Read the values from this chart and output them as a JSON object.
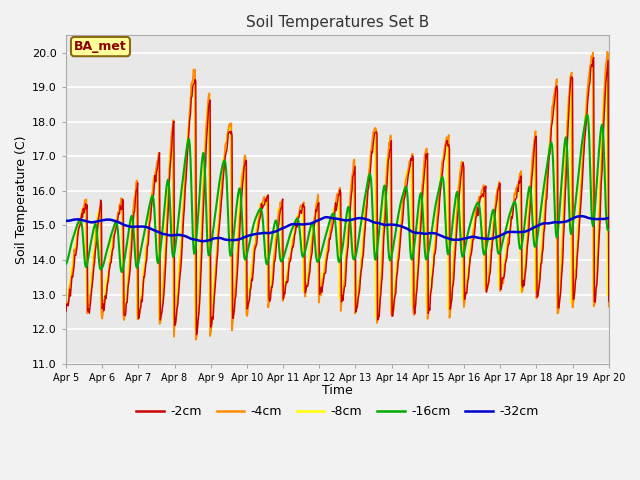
{
  "title": "Soil Temperatures Set B",
  "xlabel": "Time",
  "ylabel": "Soil Temperature (C)",
  "ylim": [
    11.0,
    20.5
  ],
  "yticks": [
    11.0,
    12.0,
    13.0,
    14.0,
    15.0,
    16.0,
    17.0,
    18.0,
    19.0,
    20.0
  ],
  "xtick_labels": [
    "Apr 5",
    "Apr 6",
    "Apr 7",
    "Apr 8",
    "Apr 9",
    "Apr 10",
    "Apr 11",
    "Apr 12",
    "Apr 13",
    "Apr 14",
    "Apr 15",
    "Apr 16",
    "Apr 17",
    "Apr 18",
    "Apr 19",
    "Apr 20"
  ],
  "annotation_text": "BA_met",
  "annotation_color": "#8B0000",
  "annotation_bg": "#FFFF99",
  "annotation_border": "#8B6914",
  "fig_facecolor": "#F2F2F2",
  "ax_facecolor": "#E8E8E8",
  "grid_color": "#FFFFFF",
  "colors": {
    "2cm": "#CC0000",
    "4cm": "#FF8C00",
    "8cm": "#FFFF00",
    "16cm": "#00AA00",
    "32cm": "#0000CC"
  },
  "line_widths": {
    "2cm": 1.0,
    "4cm": 1.3,
    "8cm": 1.0,
    "16cm": 1.5,
    "32cm": 1.8
  },
  "legend_labels": [
    "-2cm",
    "-4cm",
    "-8cm",
    "-16cm",
    "-32cm"
  ],
  "figsize": [
    6.4,
    4.8
  ],
  "dpi": 100
}
